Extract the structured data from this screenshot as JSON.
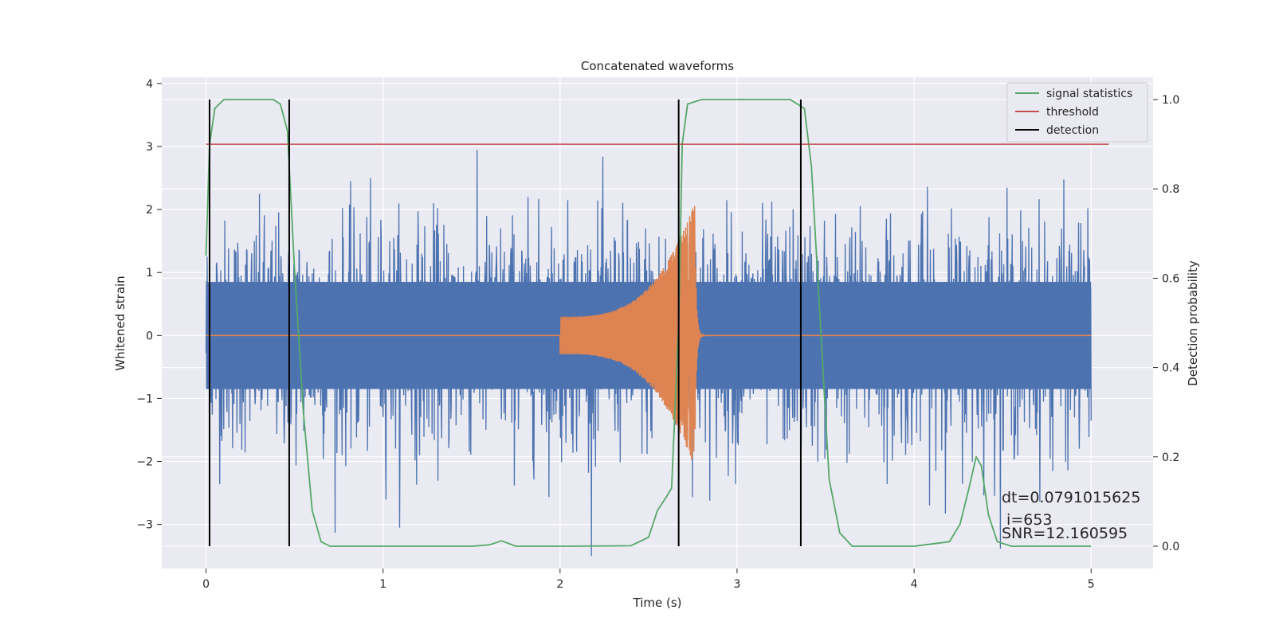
{
  "chart_data": {
    "type": "line",
    "title": "Concatenated waveforms",
    "xlabel": "Time (s)",
    "ylabel": "Whitened strain",
    "ylabel_right": "Detection probability",
    "xlim": [
      -0.25,
      5.35
    ],
    "ylim": [
      -3.7,
      4.1
    ],
    "ylim_right": [
      -0.05,
      1.05
    ],
    "xticks": [
      0,
      1,
      2,
      3,
      4,
      5
    ],
    "yticks": [
      -3,
      -2,
      -1,
      0,
      1,
      2,
      3,
      4
    ],
    "yticks_right": [
      0.0,
      0.2,
      0.4,
      0.6,
      0.8,
      1.0
    ],
    "xtick_labels": [
      "0",
      "1",
      "2",
      "3",
      "4",
      "5"
    ],
    "ytick_labels": [
      "−3",
      "−2",
      "−1",
      "0",
      "1",
      "2",
      "3",
      "4"
    ],
    "ytick_right_labels": [
      "0.0",
      "0.2",
      "0.4",
      "0.6",
      "0.8",
      "1.0"
    ],
    "grid": true,
    "legend_position": "top-right",
    "colors": {
      "strain": "#4c72b0",
      "injection": "#dd8452",
      "signal_statistics": "#55a868",
      "threshold": "#c44e52",
      "detection": "#000000",
      "plot_background": "#eaeaf2",
      "grid": "#ffffff"
    },
    "strain_noise": {
      "x_range": [
        0,
        5
      ],
      "core_amplitude": 0.85,
      "peak_amplitude": 3.5
    },
    "injection_chirp": {
      "start": 2.0,
      "merger": 2.76,
      "end": 3.0,
      "amplitude_start": 0.3,
      "amplitude_peak": 2.1
    },
    "series": [
      {
        "name": "signal statistics",
        "axis": "right",
        "x": [
          0.0,
          0.02,
          0.05,
          0.1,
          0.2,
          0.3,
          0.38,
          0.42,
          0.46,
          0.5,
          0.55,
          0.6,
          0.65,
          0.7,
          1.0,
          1.5,
          1.6,
          1.67,
          1.75,
          2.0,
          2.4,
          2.5,
          2.55,
          2.6,
          2.63,
          2.67,
          2.69,
          2.72,
          2.8,
          3.0,
          3.3,
          3.38,
          3.42,
          3.47,
          3.52,
          3.58,
          3.65,
          4.0,
          4.2,
          4.26,
          4.31,
          4.35,
          4.38,
          4.42,
          4.47,
          4.55,
          5.0
        ],
        "values": [
          0.65,
          0.9,
          0.98,
          1.0,
          1.0,
          1.0,
          1.0,
          0.99,
          0.93,
          0.62,
          0.3,
          0.08,
          0.01,
          0.0,
          0.0,
          0.0,
          0.003,
          0.012,
          0.0,
          0.0,
          0.001,
          0.02,
          0.08,
          0.11,
          0.13,
          0.5,
          0.9,
          0.99,
          1.0,
          1.0,
          1.0,
          0.98,
          0.85,
          0.5,
          0.15,
          0.03,
          0.0,
          0.0,
          0.01,
          0.05,
          0.13,
          0.2,
          0.18,
          0.07,
          0.01,
          0.0,
          0.0
        ]
      },
      {
        "name": "threshold",
        "axis": "right",
        "x": [
          0.0,
          5.1
        ],
        "values": [
          0.9,
          0.9
        ]
      },
      {
        "name": "detection",
        "axis": "right",
        "type": "vlines",
        "x": [
          0.02,
          0.47,
          2.67,
          3.36
        ],
        "range": [
          0.0,
          1.0
        ]
      }
    ],
    "annotations": [
      "dt=0.0791015625",
      " i=653",
      "SNR=12.160595"
    ]
  }
}
